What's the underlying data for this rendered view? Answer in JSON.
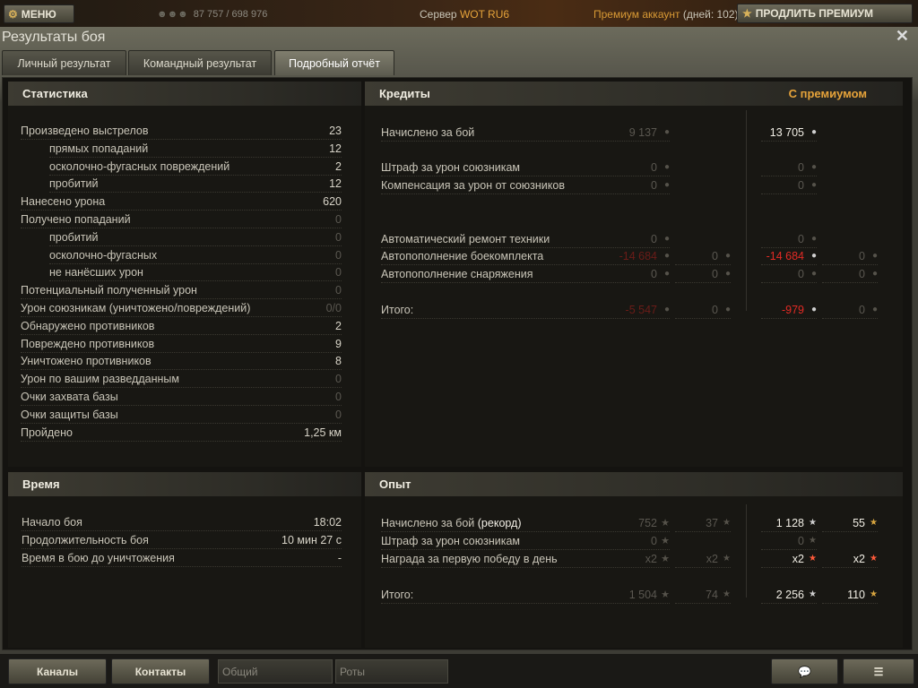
{
  "topbar": {
    "menu_label": "МЕНЮ",
    "players_online": "87 757 / 698 976",
    "server_label": "Сервер",
    "server_name": "WOT RU6",
    "premium_label": "Премиум аккаунт",
    "premium_days": "(дней:  102)",
    "extend_premium_label": "ПРОДЛИТЬ ПРЕМИУМ"
  },
  "window": {
    "title": "Результаты боя",
    "tabs": [
      {
        "label": "Личный результат"
      },
      {
        "label": "Командный результат"
      },
      {
        "label": "Подробный отчёт",
        "active": true
      }
    ]
  },
  "stats": {
    "title": "Статистика",
    "rows": [
      {
        "label": "Произведено выстрелов",
        "value": "23"
      },
      {
        "label": "прямых попаданий",
        "value": "12",
        "indent": true
      },
      {
        "label": "осколочно-фугасных повреждений",
        "value": "2",
        "indent": true
      },
      {
        "label": "пробитий",
        "value": "12",
        "indent": true
      },
      {
        "label": "Нанесено урона",
        "value": "620"
      },
      {
        "label": "Получено попаданий",
        "value": "0"
      },
      {
        "label": "пробитий",
        "value": "0",
        "indent": true
      },
      {
        "label": "осколочно-фугасных",
        "value": "0",
        "indent": true
      },
      {
        "label": "не нанёсших урон",
        "value": "0",
        "indent": true
      },
      {
        "label": "Потенциальный полученный урон",
        "value": "0"
      },
      {
        "label": "Урон союзникам (уничтожено/повреждений)",
        "value": "0/0"
      },
      {
        "label": "Обнаружено противников",
        "value": "2"
      },
      {
        "label": "Повреждено противников",
        "value": "9"
      },
      {
        "label": "Уничтожено противников",
        "value": "8"
      },
      {
        "label": "Урон по вашим разведданным",
        "value": "0"
      },
      {
        "label": "Очки захвата базы",
        "value": "0"
      },
      {
        "label": "Очки защиты базы",
        "value": "0"
      },
      {
        "label": "Пройдено",
        "value": "1,25 км"
      }
    ]
  },
  "credits": {
    "title": "Кредиты",
    "premium_title": "С премиумом",
    "rows": [
      {
        "label": "Начислено за бой",
        "base": "9 137",
        "prem": "13 705"
      },
      {
        "label": "Штраф за урон союзникам",
        "base": "0",
        "prem": "0"
      },
      {
        "label": "Компенсация за урон от союзников",
        "base": "0",
        "prem": "0"
      },
      {
        "label": "Автоматический ремонт техники",
        "base": "0",
        "prem": "0"
      },
      {
        "label": "Автопополнение боекомплекта",
        "base": "-14 684",
        "base_gold": "0",
        "prem": "-14 684",
        "prem_gold": "0"
      },
      {
        "label": "Автопополнение снаряжения",
        "base": "0",
        "base_gold": "0",
        "prem": "0",
        "prem_gold": "0"
      },
      {
        "label": "Итого:",
        "base": "-5 547",
        "base_gold": "0",
        "prem": "-979",
        "prem_gold": "0"
      }
    ]
  },
  "time": {
    "title": "Время",
    "rows": [
      {
        "label": "Начало боя",
        "value": "18:02"
      },
      {
        "label": "Продолжительность боя",
        "value": "10 мин 27 с"
      },
      {
        "label": "Время в бою до уничтожения",
        "value": "-"
      }
    ]
  },
  "experience": {
    "title": "Опыт",
    "rows": [
      {
        "label": "Начислено за бой",
        "label_extra": "(рекорд)",
        "base": "752",
        "base_free": "37",
        "prem": "1 128",
        "prem_free": "55"
      },
      {
        "label": "Штраф за урон союзникам",
        "base": "0",
        "prem": "0"
      },
      {
        "label": "Награда за первую победу в день",
        "base": "x2",
        "base_free": "x2",
        "prem": "x2",
        "prem_free": "x2"
      },
      {
        "label": "Итого:",
        "base": "1 504",
        "base_free": "74",
        "prem": "2 256",
        "prem_free": "110"
      }
    ]
  },
  "bottom": {
    "channels_label": "Каналы",
    "contacts_label": "Контакты",
    "channel_tabs": [
      "Общий",
      "Роты"
    ]
  },
  "colors": {
    "accent_orange": "#e6a33a",
    "negative_red": "#e22a24"
  },
  "icons": {
    "credits": "silver-coin-icon",
    "gold": "gold-coin-icon",
    "xp": "star-icon",
    "free_xp": "gold-star-icon"
  }
}
